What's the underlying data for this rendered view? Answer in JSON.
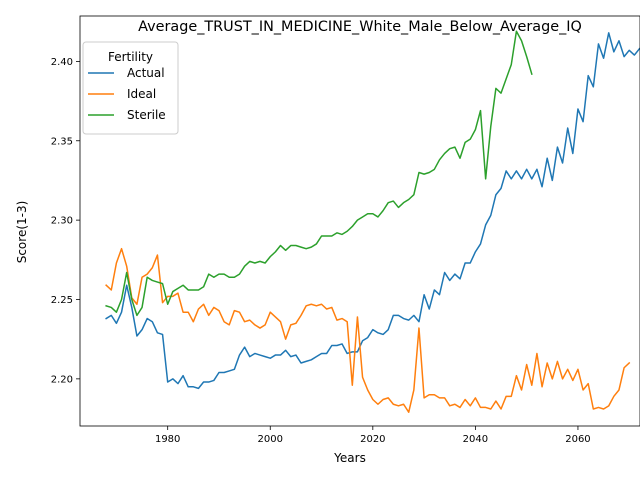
{
  "chart_data": {
    "type": "line",
    "title": "Average_TRUST_IN_MEDICINE_White_Male_Below_Average_IQ",
    "xlabel": "Years",
    "ylabel": "Score(1-3)",
    "xlim": [
      1962.9,
      2072.1
    ],
    "ylim": [
      2.1703,
      2.4286
    ],
    "x_ticks": [
      1980,
      2000,
      2020,
      2040,
      2060
    ],
    "y_ticks": [
      2.2,
      2.25,
      2.3,
      2.35,
      2.4
    ],
    "x_tick_labels": [
      "1980",
      "2000",
      "2020",
      "2040",
      "2060"
    ],
    "y_tick_labels": [
      "2.20",
      "2.25",
      "2.30",
      "2.35",
      "2.40"
    ],
    "grid": false,
    "legend": {
      "title": "Fertility",
      "placement": "top-left"
    },
    "series": [
      {
        "name": "Actual",
        "color": "#1f77b4",
        "start_year": 1968,
        "values": [
          2.238,
          2.24,
          2.235,
          2.242,
          2.259,
          2.245,
          2.227,
          2.231,
          2.238,
          2.236,
          2.229,
          2.228,
          2.198,
          2.2,
          2.197,
          2.202,
          2.195,
          2.195,
          2.194,
          2.198,
          2.198,
          2.199,
          2.204,
          2.204,
          2.205,
          2.206,
          2.215,
          2.22,
          2.214,
          2.216,
          2.215,
          2.214,
          2.213,
          2.215,
          2.215,
          2.218,
          2.214,
          2.215,
          2.21,
          2.211,
          2.212,
          2.214,
          2.216,
          2.216,
          2.221,
          2.221,
          2.222,
          2.216,
          2.217,
          2.217,
          2.224,
          2.226,
          2.231,
          2.229,
          2.228,
          2.231,
          2.24,
          2.24,
          2.238,
          2.237,
          2.24,
          2.236,
          2.253,
          2.244,
          2.256,
          2.253,
          2.267,
          2.262,
          2.266,
          2.263,
          2.273,
          2.273,
          2.28,
          2.285,
          2.297,
          2.303,
          2.316,
          2.32,
          2.331,
          2.326,
          2.331,
          2.326,
          2.332,
          2.326,
          2.332,
          2.321,
          2.339,
          2.325,
          2.346,
          2.336,
          2.358,
          2.342,
          2.37,
          2.362,
          2.391,
          2.384,
          2.411,
          2.402,
          2.418,
          2.406,
          2.413,
          2.403,
          2.407,
          2.404,
          2.408
        ]
      },
      {
        "name": "Ideal",
        "color": "#ff7f0e",
        "start_year": 1968,
        "values": [
          2.259,
          2.256,
          2.273,
          2.282,
          2.271,
          2.251,
          2.247,
          2.264,
          2.266,
          2.27,
          2.278,
          2.248,
          2.252,
          2.252,
          2.254,
          2.242,
          2.242,
          2.236,
          2.244,
          2.247,
          2.24,
          2.245,
          2.243,
          2.236,
          2.234,
          2.243,
          2.242,
          2.236,
          2.237,
          2.234,
          2.232,
          2.234,
          2.242,
          2.239,
          2.236,
          2.225,
          2.234,
          2.235,
          2.24,
          2.246,
          2.247,
          2.246,
          2.247,
          2.244,
          2.245,
          2.237,
          2.238,
          2.236,
          2.196,
          2.239,
          2.201,
          2.193,
          2.187,
          2.184,
          2.187,
          2.188,
          2.184,
          2.183,
          2.184,
          2.179,
          2.193,
          2.232,
          2.188,
          2.19,
          2.19,
          2.188,
          2.188,
          2.183,
          2.184,
          2.182,
          2.187,
          2.183,
          2.188,
          2.182,
          2.182,
          2.181,
          2.186,
          2.181,
          2.189,
          2.189,
          2.202,
          2.193,
          2.209,
          2.196,
          2.216,
          2.195,
          2.21,
          2.2,
          2.211,
          2.2,
          2.206,
          2.199,
          2.206,
          2.193,
          2.197,
          2.181,
          2.182,
          2.181,
          2.183,
          2.189,
          2.193,
          2.207,
          2.21
        ]
      },
      {
        "name": "Sterile",
        "color": "#2ca02c",
        "start_year": 1968,
        "values": [
          2.246,
          2.245,
          2.242,
          2.25,
          2.267,
          2.25,
          2.24,
          2.245,
          2.264,
          2.262,
          2.261,
          2.26,
          2.247,
          2.255,
          2.257,
          2.259,
          2.256,
          2.256,
          2.256,
          2.258,
          2.266,
          2.264,
          2.266,
          2.266,
          2.264,
          2.264,
          2.266,
          2.271,
          2.274,
          2.273,
          2.274,
          2.273,
          2.277,
          2.28,
          2.284,
          2.281,
          2.284,
          2.284,
          2.283,
          2.282,
          2.283,
          2.285,
          2.29,
          2.29,
          2.29,
          2.292,
          2.291,
          2.293,
          2.296,
          2.3,
          2.302,
          2.304,
          2.304,
          2.302,
          2.306,
          2.311,
          2.312,
          2.308,
          2.311,
          2.313,
          2.316,
          2.33,
          2.329,
          2.33,
          2.332,
          2.338,
          2.342,
          2.345,
          2.346,
          2.339,
          2.349,
          2.351,
          2.357,
          2.369,
          2.326,
          2.359,
          2.383,
          2.38,
          2.389,
          2.398,
          2.419,
          2.413,
          2.403,
          2.392
        ]
      }
    ]
  }
}
